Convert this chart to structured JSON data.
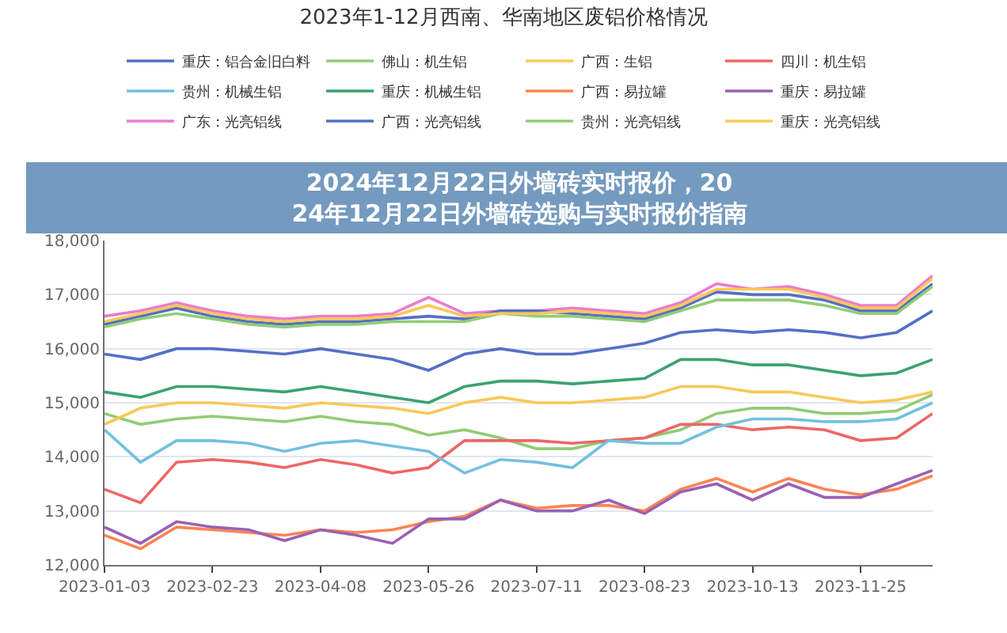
{
  "chart_data": {
    "type": "line",
    "title": "2023年1-12月西南、华南地区废铝价格情况",
    "annotations": [
      "2024年12月22日外墙砖实时报价，2024年12月22日外墙砖选购与实时报价指南"
    ],
    "categories": [
      "2023-01-03",
      null,
      null,
      "2023-02-23",
      null,
      null,
      "2023-04-08",
      null,
      null,
      "2023-05-26",
      null,
      null,
      "2023-07-11",
      null,
      null,
      "2023-08-23",
      null,
      null,
      "2023-10-13",
      null,
      null,
      "2023-11-25",
      null,
      null
    ],
    "ylim": [
      12000,
      18000
    ],
    "yticks": [
      {
        "value": 12000,
        "label": "12,000"
      },
      {
        "value": 13000,
        "label": "13,000"
      },
      {
        "value": 14000,
        "label": "14,000"
      },
      {
        "value": 15000,
        "label": "15,000"
      },
      {
        "value": 16000,
        "label": "16,000"
      },
      {
        "value": 17000,
        "label": "17,000"
      },
      {
        "value": 18000,
        "label": "18,000"
      }
    ],
    "grid": "y",
    "legend": "top",
    "marker": "none",
    "line_style": "solid",
    "series": [
      {
        "name": "重庆：铝合金旧白料",
        "color": "#5470c6",
        "values": [
          15900,
          15800,
          16000,
          16000,
          15950,
          15900,
          16000,
          15900,
          15800,
          15600,
          15900,
          16000,
          15900,
          15900,
          16000,
          16100,
          16300,
          16350,
          16300,
          16350,
          16300,
          16200,
          16300,
          16700
        ]
      },
      {
        "name": "佛山：机生铝",
        "color": "#91cc75",
        "values": [
          14800,
          14600,
          14700,
          14750,
          14700,
          14650,
          14750,
          14650,
          14600,
          14400,
          14500,
          14350,
          14150,
          14150,
          14300,
          14350,
          14500,
          14800,
          14900,
          14900,
          14800,
          14800,
          14850,
          15150
        ]
      },
      {
        "name": "广西：生铝",
        "color": "#fac858",
        "values": [
          14600,
          14900,
          15000,
          15000,
          14950,
          14900,
          15000,
          14950,
          14900,
          14800,
          15000,
          15100,
          15000,
          15000,
          15050,
          15100,
          15300,
          15300,
          15200,
          15200,
          15100,
          15000,
          15050,
          15200
        ]
      },
      {
        "name": "四川：机生铝",
        "color": "#ee6666",
        "values": [
          13400,
          13150,
          13900,
          13950,
          13900,
          13800,
          13950,
          13850,
          13700,
          13800,
          14300,
          14300,
          14300,
          14250,
          14300,
          14350,
          14600,
          14600,
          14500,
          14550,
          14500,
          14300,
          14350,
          14800
        ]
      },
      {
        "name": "贵州：机械生铝",
        "color": "#73c0de",
        "values": [
          14500,
          13900,
          14300,
          14300,
          14250,
          14100,
          14250,
          14300,
          14200,
          14100,
          13700,
          13950,
          13900,
          13800,
          14300,
          14250,
          14250,
          14550,
          14700,
          14700,
          14650,
          14650,
          14700,
          15000
        ]
      },
      {
        "name": "重庆：机械生铝",
        "color": "#3ba272",
        "values": [
          15200,
          15100,
          15300,
          15300,
          15250,
          15200,
          15300,
          15200,
          15100,
          15000,
          15300,
          15400,
          15400,
          15350,
          15400,
          15450,
          15800,
          15800,
          15700,
          15700,
          15600,
          15500,
          15550,
          15800
        ]
      },
      {
        "name": "广西：易拉罐",
        "color": "#fc8452",
        "values": [
          12550,
          12300,
          12700,
          12650,
          12600,
          12550,
          12650,
          12600,
          12650,
          12800,
          12900,
          13200,
          13050,
          13100,
          13100,
          13000,
          13400,
          13600,
          13350,
          13600,
          13400,
          13300,
          13400,
          13650
        ]
      },
      {
        "name": "重庆：易拉罐",
        "color": "#9a60b4",
        "values": [
          12700,
          12400,
          12800,
          12700,
          12650,
          12450,
          12650,
          12550,
          12400,
          12850,
          12850,
          13200,
          13000,
          13000,
          13200,
          12950,
          13350,
          13500,
          13200,
          13500,
          13250,
          13250,
          13500,
          13750
        ]
      },
      {
        "name": "广东：光亮铝线",
        "color": "#ea7ccc",
        "values": [
          16600,
          16700,
          16850,
          16700,
          16600,
          16550,
          16600,
          16600,
          16650,
          16950,
          16650,
          16700,
          16700,
          16750,
          16700,
          16650,
          16850,
          17200,
          17100,
          17150,
          17000,
          16800,
          16800,
          17350
        ]
      },
      {
        "name": "广西：光亮铝线",
        "color": "#5470c6",
        "values": [
          16450,
          16600,
          16750,
          16600,
          16500,
          16450,
          16500,
          16500,
          16550,
          16600,
          16550,
          16700,
          16700,
          16650,
          16600,
          16550,
          16750,
          17050,
          17000,
          17000,
          16900,
          16700,
          16700,
          17200
        ]
      },
      {
        "name": "贵州：光亮铝线",
        "color": "#91cc75",
        "values": [
          16400,
          16550,
          16650,
          16550,
          16450,
          16400,
          16450,
          16450,
          16500,
          16500,
          16500,
          16650,
          16600,
          16600,
          16550,
          16500,
          16700,
          16900,
          16900,
          16900,
          16800,
          16650,
          16650,
          17150
        ]
      },
      {
        "name": "重庆：光亮铝线",
        "color": "#fac858",
        "values": [
          16500,
          16650,
          16800,
          16650,
          16550,
          16500,
          16550,
          16550,
          16600,
          16800,
          16600,
          16650,
          16650,
          16700,
          16650,
          16600,
          16800,
          17100,
          17100,
          17100,
          16950,
          16750,
          16750,
          17300
        ]
      }
    ]
  }
}
